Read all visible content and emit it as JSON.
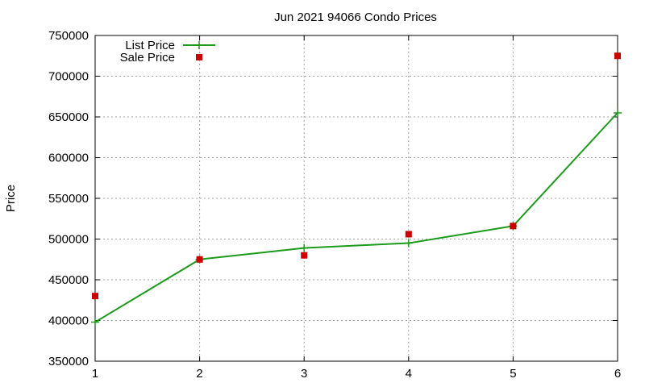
{
  "chart_data": {
    "type": "line",
    "title": "Jun 2021 94066 Condo Prices",
    "xlabel": "",
    "ylabel": "Price",
    "xlim": [
      1,
      6
    ],
    "ylim": [
      350000,
      750000
    ],
    "x_ticks": [
      "1",
      "2",
      "3",
      "4",
      "5",
      "6"
    ],
    "y_ticks": [
      "350000",
      "400000",
      "450000",
      "500000",
      "550000",
      "600000",
      "650000",
      "700000",
      "750000"
    ],
    "grid": true,
    "legend_position": "top-left",
    "series": [
      {
        "name": "List Price",
        "style": "lines+points",
        "marker": "plus",
        "color": "#1a9c1a",
        "x": [
          1,
          2,
          3,
          4,
          5,
          6
        ],
        "y": [
          398000,
          475000,
          489000,
          495000,
          516000,
          655000
        ]
      },
      {
        "name": "Sale Price",
        "style": "points",
        "marker": "square",
        "color": "#cc0000",
        "x": [
          1,
          2,
          3,
          4,
          5,
          6
        ],
        "y": [
          430000,
          475000,
          480000,
          506000,
          516000,
          725000
        ]
      }
    ]
  }
}
